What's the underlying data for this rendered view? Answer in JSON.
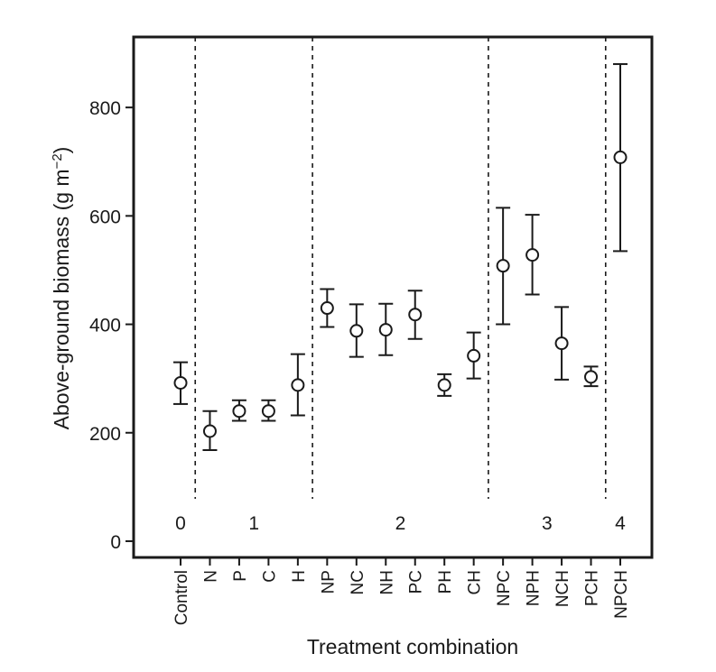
{
  "chart_data": {
    "type": "scatter",
    "title": "",
    "xlabel": "Treatment combination",
    "ylabel": "Above-ground biomass (g m−2)",
    "ylabel_parts": {
      "main": "Above-ground biomass (g m",
      "sup": "−2",
      "close": ")"
    },
    "ylim": [
      -30,
      930
    ],
    "yticks": [
      0,
      200,
      400,
      600,
      800
    ],
    "grid": false,
    "categories": [
      "Control",
      "N",
      "P",
      "C",
      "H",
      "NP",
      "NC",
      "NH",
      "PC",
      "PH",
      "CH",
      "NPC",
      "NPH",
      "NCH",
      "PCH",
      "NPCH"
    ],
    "series": [
      {
        "name": "Above-ground biomass",
        "values": [
          292,
          203,
          240,
          240,
          288,
          430,
          388,
          390,
          418,
          288,
          342,
          508,
          528,
          365,
          303,
          708
        ],
        "err_low": [
          253,
          168,
          222,
          222,
          232,
          395,
          340,
          343,
          373,
          268,
          300,
          400,
          455,
          298,
          286,
          535
        ],
        "err_high": [
          330,
          240,
          260,
          260,
          345,
          465,
          437,
          438,
          462,
          308,
          385,
          615,
          602,
          432,
          322,
          880
        ]
      }
    ],
    "groups": [
      {
        "label": "0",
        "first": 0,
        "last": 0
      },
      {
        "label": "1",
        "first": 1,
        "last": 4
      },
      {
        "label": "2",
        "first": 5,
        "last": 10
      },
      {
        "label": "3",
        "first": 11,
        "last": 14
      },
      {
        "label": "4",
        "first": 15,
        "last": 15
      }
    ],
    "dividers_after": [
      0,
      4,
      10,
      14
    ]
  }
}
